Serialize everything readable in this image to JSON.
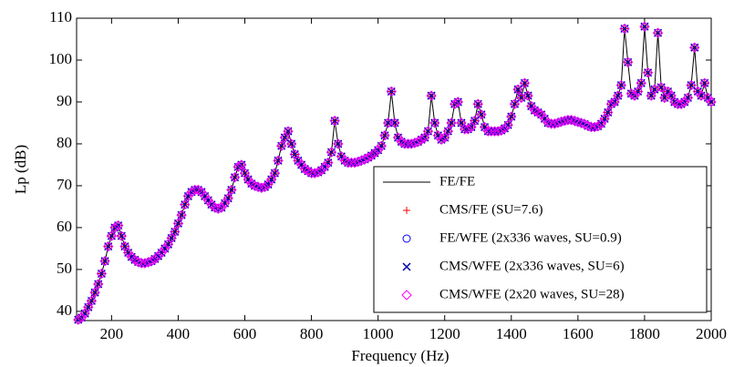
{
  "chart_data": {
    "type": "line",
    "x_label": "Frequency (Hz)",
    "y_label": "Lp (dB)",
    "xlim": [
      95,
      2000
    ],
    "ylim": [
      37.8,
      110
    ],
    "xticks": [
      200,
      400,
      600,
      800,
      1000,
      1200,
      1400,
      1600,
      1800,
      2000
    ],
    "yticks": [
      40,
      50,
      60,
      70,
      80,
      90,
      100,
      110
    ],
    "legend": "lower right",
    "x": [
      100,
      110,
      120,
      130,
      140,
      150,
      160,
      170,
      180,
      190,
      200,
      210,
      220,
      230,
      240,
      250,
      260,
      270,
      280,
      290,
      300,
      310,
      320,
      330,
      340,
      350,
      360,
      370,
      380,
      390,
      400,
      410,
      420,
      430,
      440,
      450,
      460,
      470,
      480,
      490,
      500,
      510,
      520,
      530,
      540,
      550,
      560,
      570,
      580,
      590,
      600,
      610,
      620,
      630,
      640,
      650,
      660,
      670,
      680,
      690,
      700,
      710,
      720,
      730,
      740,
      750,
      760,
      770,
      780,
      790,
      800,
      810,
      820,
      830,
      840,
      850,
      860,
      870,
      880,
      890,
      900,
      910,
      920,
      930,
      940,
      950,
      960,
      970,
      980,
      990,
      1000,
      1010,
      1020,
      1030,
      1040,
      1050,
      1060,
      1070,
      1080,
      1090,
      1100,
      1110,
      1120,
      1130,
      1140,
      1150,
      1160,
      1170,
      1180,
      1190,
      1200,
      1210,
      1220,
      1230,
      1240,
      1250,
      1260,
      1270,
      1280,
      1290,
      1300,
      1310,
      1320,
      1330,
      1340,
      1350,
      1360,
      1370,
      1380,
      1390,
      1400,
      1410,
      1420,
      1430,
      1440,
      1450,
      1460,
      1470,
      1480,
      1490,
      1500,
      1510,
      1520,
      1530,
      1540,
      1550,
      1560,
      1570,
      1580,
      1590,
      1600,
      1610,
      1620,
      1630,
      1640,
      1650,
      1660,
      1670,
      1680,
      1690,
      1700,
      1710,
      1720,
      1730,
      1740,
      1750,
      1760,
      1770,
      1780,
      1790,
      1800,
      1810,
      1820,
      1830,
      1840,
      1850,
      1860,
      1870,
      1880,
      1890,
      1900,
      1910,
      1920,
      1930,
      1940,
      1950,
      1960,
      1970,
      1980,
      1990,
      2000
    ],
    "series": [
      {
        "name": "FE/FE",
        "color": "#000000",
        "marker": "line",
        "values": [
          38,
          38.5,
          39.5,
          41,
          42.5,
          44.5,
          46.5,
          49,
          52,
          55.5,
          58,
          60,
          60.5,
          58,
          55.5,
          54,
          53,
          52.3,
          51.8,
          51.5,
          51.5,
          51.7,
          52,
          52.5,
          53.2,
          54,
          55,
          56,
          57.5,
          59,
          61,
          63,
          65.5,
          67.5,
          68.5,
          69,
          69,
          68.5,
          67.5,
          66.5,
          65.5,
          64.8,
          64.5,
          64.8,
          65.8,
          67,
          69,
          72,
          74.5,
          75,
          73,
          71.5,
          70.5,
          70,
          69.7,
          69.5,
          69.7,
          70.3,
          71.5,
          73,
          76,
          79.5,
          81.5,
          83,
          80,
          77.5,
          76,
          75,
          74,
          73.5,
          73,
          73,
          73.2,
          73.7,
          74.5,
          75.5,
          78,
          85.5,
          80,
          77,
          76,
          75.5,
          75.5,
          75.5,
          75.7,
          76,
          76.3,
          76.7,
          77.2,
          77.8,
          78.5,
          79.5,
          82,
          85,
          92.5,
          85,
          81.5,
          80.5,
          80,
          80,
          80,
          80.2,
          80.5,
          81,
          81.5,
          83,
          91.5,
          85,
          82,
          81,
          81.5,
          83,
          85,
          89.5,
          90,
          85,
          83.5,
          83.5,
          84,
          85.5,
          89.5,
          87,
          84,
          83,
          83,
          83,
          83,
          83.2,
          83.7,
          84.5,
          86.5,
          89.5,
          93,
          91,
          94.5,
          91.5,
          89,
          88,
          87.5,
          87,
          86,
          85,
          84.8,
          84.8,
          85,
          85.3,
          85.5,
          85.7,
          85.7,
          85.5,
          85.2,
          85,
          84.7,
          84.3,
          84,
          84,
          84.2,
          84.8,
          86,
          87.5,
          89.5,
          90,
          91.5,
          94,
          107.5,
          99.5,
          92,
          91.5,
          92.5,
          94.5,
          108,
          97,
          91.5,
          93,
          106.5,
          93.5,
          91,
          92.5,
          91.5,
          90,
          89.5,
          89.5,
          90,
          91,
          94,
          103,
          92.5,
          91.5,
          94.5,
          91,
          90
        ]
      },
      {
        "name": "CMS/FE (SU=7.6)",
        "color": "#ff0000",
        "marker": "+",
        "values": [
          38,
          38.5,
          39.5,
          41,
          42.5,
          44.5,
          46.5,
          49,
          52,
          55.5,
          58,
          60,
          60.5,
          58,
          55.5,
          54,
          53,
          52.3,
          51.8,
          51.5,
          51.5,
          51.7,
          52,
          52.5,
          53.2,
          54,
          55,
          56,
          57.5,
          59,
          61,
          63,
          65.5,
          67.5,
          68.5,
          69,
          69,
          68.5,
          67.5,
          66.5,
          65.5,
          64.8,
          64.5,
          64.8,
          65.8,
          67,
          69,
          72,
          74.5,
          75,
          73,
          71.5,
          70.5,
          70,
          69.7,
          69.5,
          69.7,
          70.3,
          71.5,
          73,
          76,
          79.5,
          81.5,
          83,
          80,
          77.5,
          76,
          75,
          74,
          73.5,
          73,
          73,
          73.2,
          73.7,
          74.5,
          75.5,
          78,
          85.5,
          80,
          77,
          76,
          75.5,
          75.5,
          75.5,
          75.7,
          76,
          76.3,
          76.7,
          77.2,
          77.8,
          78.5,
          79.5,
          82,
          85,
          92.5,
          85,
          81.5,
          80.5,
          80,
          80,
          80,
          80.2,
          80.5,
          81,
          81.5,
          83,
          91.5,
          85,
          82,
          81,
          81.5,
          83,
          85,
          89.5,
          90,
          85,
          83.5,
          83.5,
          84,
          85.5,
          89.5,
          87,
          84,
          83,
          83,
          83,
          83,
          83.2,
          83.7,
          84.5,
          86.5,
          89.5,
          93,
          91,
          94.5,
          91.5,
          89,
          88,
          87.5,
          87,
          86,
          85,
          84.8,
          84.8,
          85,
          85.3,
          85.5,
          85.7,
          85.7,
          85.5,
          85.2,
          85,
          84.7,
          84.3,
          84,
          84,
          84.2,
          84.8,
          86,
          87.5,
          89.5,
          90,
          91.5,
          94,
          107.5,
          99.5,
          92,
          91.5,
          92.5,
          94.5,
          108,
          97,
          91.5,
          93,
          106.5,
          93.5,
          91,
          92.5,
          91.5,
          90,
          89.5,
          89.5,
          90,
          91,
          94,
          103,
          92.5,
          91.5,
          94.5,
          91,
          90
        ]
      },
      {
        "name": "FE/WFE (2x336 waves, SU=0.9)",
        "color": "#0000ff",
        "marker": "o",
        "values": [
          38,
          38.5,
          39.5,
          41,
          42.5,
          44.5,
          46.5,
          49,
          52,
          55.5,
          58,
          60,
          60.5,
          58,
          55.5,
          54,
          53,
          52.3,
          51.8,
          51.5,
          51.5,
          51.7,
          52,
          52.5,
          53.2,
          54,
          55,
          56,
          57.5,
          59,
          61,
          63,
          65.5,
          67.5,
          68.5,
          69,
          69,
          68.5,
          67.5,
          66.5,
          65.5,
          64.8,
          64.5,
          64.8,
          65.8,
          67,
          69,
          72,
          74.5,
          75,
          73,
          71.5,
          70.5,
          70,
          69.7,
          69.5,
          69.7,
          70.3,
          71.5,
          73,
          76,
          79.5,
          81.5,
          83,
          80,
          77.5,
          76,
          75,
          74,
          73.5,
          73,
          73,
          73.2,
          73.7,
          74.5,
          75.5,
          78,
          85.5,
          80,
          77,
          76,
          75.5,
          75.5,
          75.5,
          75.7,
          76,
          76.3,
          76.7,
          77.2,
          77.8,
          78.5,
          79.5,
          82,
          85,
          92.5,
          85,
          81.5,
          80.5,
          80,
          80,
          80,
          80.2,
          80.5,
          81,
          81.5,
          83,
          91.5,
          85,
          82,
          81,
          81.5,
          83,
          85,
          89.5,
          90,
          85,
          83.5,
          83.5,
          84,
          85.5,
          89.5,
          87,
          84,
          83,
          83,
          83,
          83,
          83.2,
          83.7,
          84.5,
          86.5,
          89.5,
          93,
          91,
          94.5,
          91.5,
          89,
          88,
          87.5,
          87,
          86,
          85,
          84.8,
          84.8,
          85,
          85.3,
          85.5,
          85.7,
          85.7,
          85.5,
          85.2,
          85,
          84.7,
          84.3,
          84,
          84,
          84.2,
          84.8,
          86,
          87.5,
          89.5,
          90,
          91.5,
          94,
          107.5,
          99.5,
          92,
          91.5,
          92.5,
          94.5,
          108,
          97,
          91.5,
          93,
          106.5,
          93.5,
          91,
          92.5,
          91.5,
          90,
          89.5,
          89.5,
          90,
          91,
          94,
          103,
          92.5,
          91.5,
          94.5,
          91,
          90
        ]
      },
      {
        "name": "CMS/WFE (2x336 waves, SU=6)",
        "color": "#0000aa",
        "marker": "x",
        "values": [
          38,
          38.5,
          39.5,
          41,
          42.5,
          44.5,
          46.5,
          49,
          52,
          55.5,
          58,
          60,
          60.5,
          58,
          55.5,
          54,
          53,
          52.3,
          51.8,
          51.5,
          51.5,
          51.7,
          52,
          52.5,
          53.2,
          54,
          55,
          56,
          57.5,
          59,
          61,
          63,
          65.5,
          67.5,
          68.5,
          69,
          69,
          68.5,
          67.5,
          66.5,
          65.5,
          64.8,
          64.5,
          64.8,
          65.8,
          67,
          69,
          72,
          74.5,
          75,
          73,
          71.5,
          70.5,
          70,
          69.7,
          69.5,
          69.7,
          70.3,
          71.5,
          73,
          76,
          79.5,
          81.5,
          83,
          80,
          77.5,
          76,
          75,
          74,
          73.5,
          73,
          73,
          73.2,
          73.7,
          74.5,
          75.5,
          78,
          85.5,
          80,
          77,
          76,
          75.5,
          75.5,
          75.5,
          75.7,
          76,
          76.3,
          76.7,
          77.2,
          77.8,
          78.5,
          79.5,
          82,
          85,
          92.5,
          85,
          81.5,
          80.5,
          80,
          80,
          80,
          80.2,
          80.5,
          81,
          81.5,
          83,
          91.5,
          85,
          82,
          81,
          81.5,
          83,
          85,
          89.5,
          90,
          85,
          83.5,
          83.5,
          84,
          85.5,
          89.5,
          87,
          84,
          83,
          83,
          83,
          83,
          83.2,
          83.7,
          84.5,
          86.5,
          89.5,
          93,
          91,
          94.5,
          91.5,
          89,
          88,
          87.5,
          87,
          86,
          85,
          84.8,
          84.8,
          85,
          85.3,
          85.5,
          85.7,
          85.7,
          85.5,
          85.2,
          85,
          84.7,
          84.3,
          84,
          84,
          84.2,
          84.8,
          86,
          87.5,
          89.5,
          90,
          91.5,
          94,
          107.5,
          99.5,
          92,
          91.5,
          92.5,
          94.5,
          108,
          97,
          91.5,
          93,
          106.5,
          93.5,
          91,
          92.5,
          91.5,
          90,
          89.5,
          89.5,
          90,
          91,
          94,
          103,
          92.5,
          91.5,
          94.5,
          91,
          90
        ]
      },
      {
        "name": "CMS/WFE (2x20 waves, SU=28)",
        "color": "#ff00ff",
        "marker": "D",
        "values": [
          38,
          38.5,
          39.5,
          41,
          42.5,
          44.5,
          46.5,
          49,
          52,
          55.5,
          58,
          60,
          60.5,
          58,
          55.5,
          54,
          53,
          52.3,
          51.8,
          51.5,
          51.5,
          51.7,
          52,
          52.5,
          53.2,
          54,
          55,
          56,
          57.5,
          59,
          61,
          63,
          65.5,
          67.5,
          68.5,
          69,
          69,
          68.5,
          67.5,
          66.5,
          65.5,
          64.8,
          64.5,
          64.8,
          65.8,
          67,
          69,
          72,
          74.5,
          75,
          73,
          71.5,
          70.5,
          70,
          69.7,
          69.5,
          69.7,
          70.3,
          71.5,
          73,
          76,
          79.5,
          81.5,
          83,
          80,
          77.5,
          76,
          75,
          74,
          73.5,
          73,
          73,
          73.2,
          73.7,
          74.5,
          75.5,
          78,
          85.5,
          80,
          77,
          76,
          75.5,
          75.5,
          75.5,
          75.7,
          76,
          76.3,
          76.7,
          77.2,
          77.8,
          78.5,
          79.5,
          82,
          85,
          92.5,
          85,
          81.5,
          80.5,
          80,
          80,
          80,
          80.2,
          80.5,
          81,
          81.5,
          83,
          91.5,
          85,
          82,
          81,
          81.5,
          83,
          85,
          89.5,
          90,
          85,
          83.5,
          83.5,
          84,
          85.5,
          89.5,
          87,
          84,
          83,
          83,
          83,
          83,
          83.2,
          83.7,
          84.5,
          86.5,
          89.5,
          93,
          91,
          94.5,
          91.5,
          89,
          88,
          87.5,
          87,
          86,
          85,
          84.8,
          84.8,
          85,
          85.3,
          85.5,
          85.7,
          85.7,
          85.5,
          85.2,
          85,
          84.7,
          84.3,
          84,
          84,
          84.2,
          84.8,
          86,
          87.5,
          89.5,
          90,
          91.5,
          94,
          107.5,
          99.5,
          92,
          91.5,
          92.5,
          94.5,
          108,
          97,
          91.5,
          93,
          106.5,
          93.5,
          91,
          92.5,
          91.5,
          90,
          89.5,
          89.5,
          90,
          91,
          94,
          103,
          92.5,
          91.5,
          94.5,
          91,
          90
        ]
      }
    ]
  }
}
